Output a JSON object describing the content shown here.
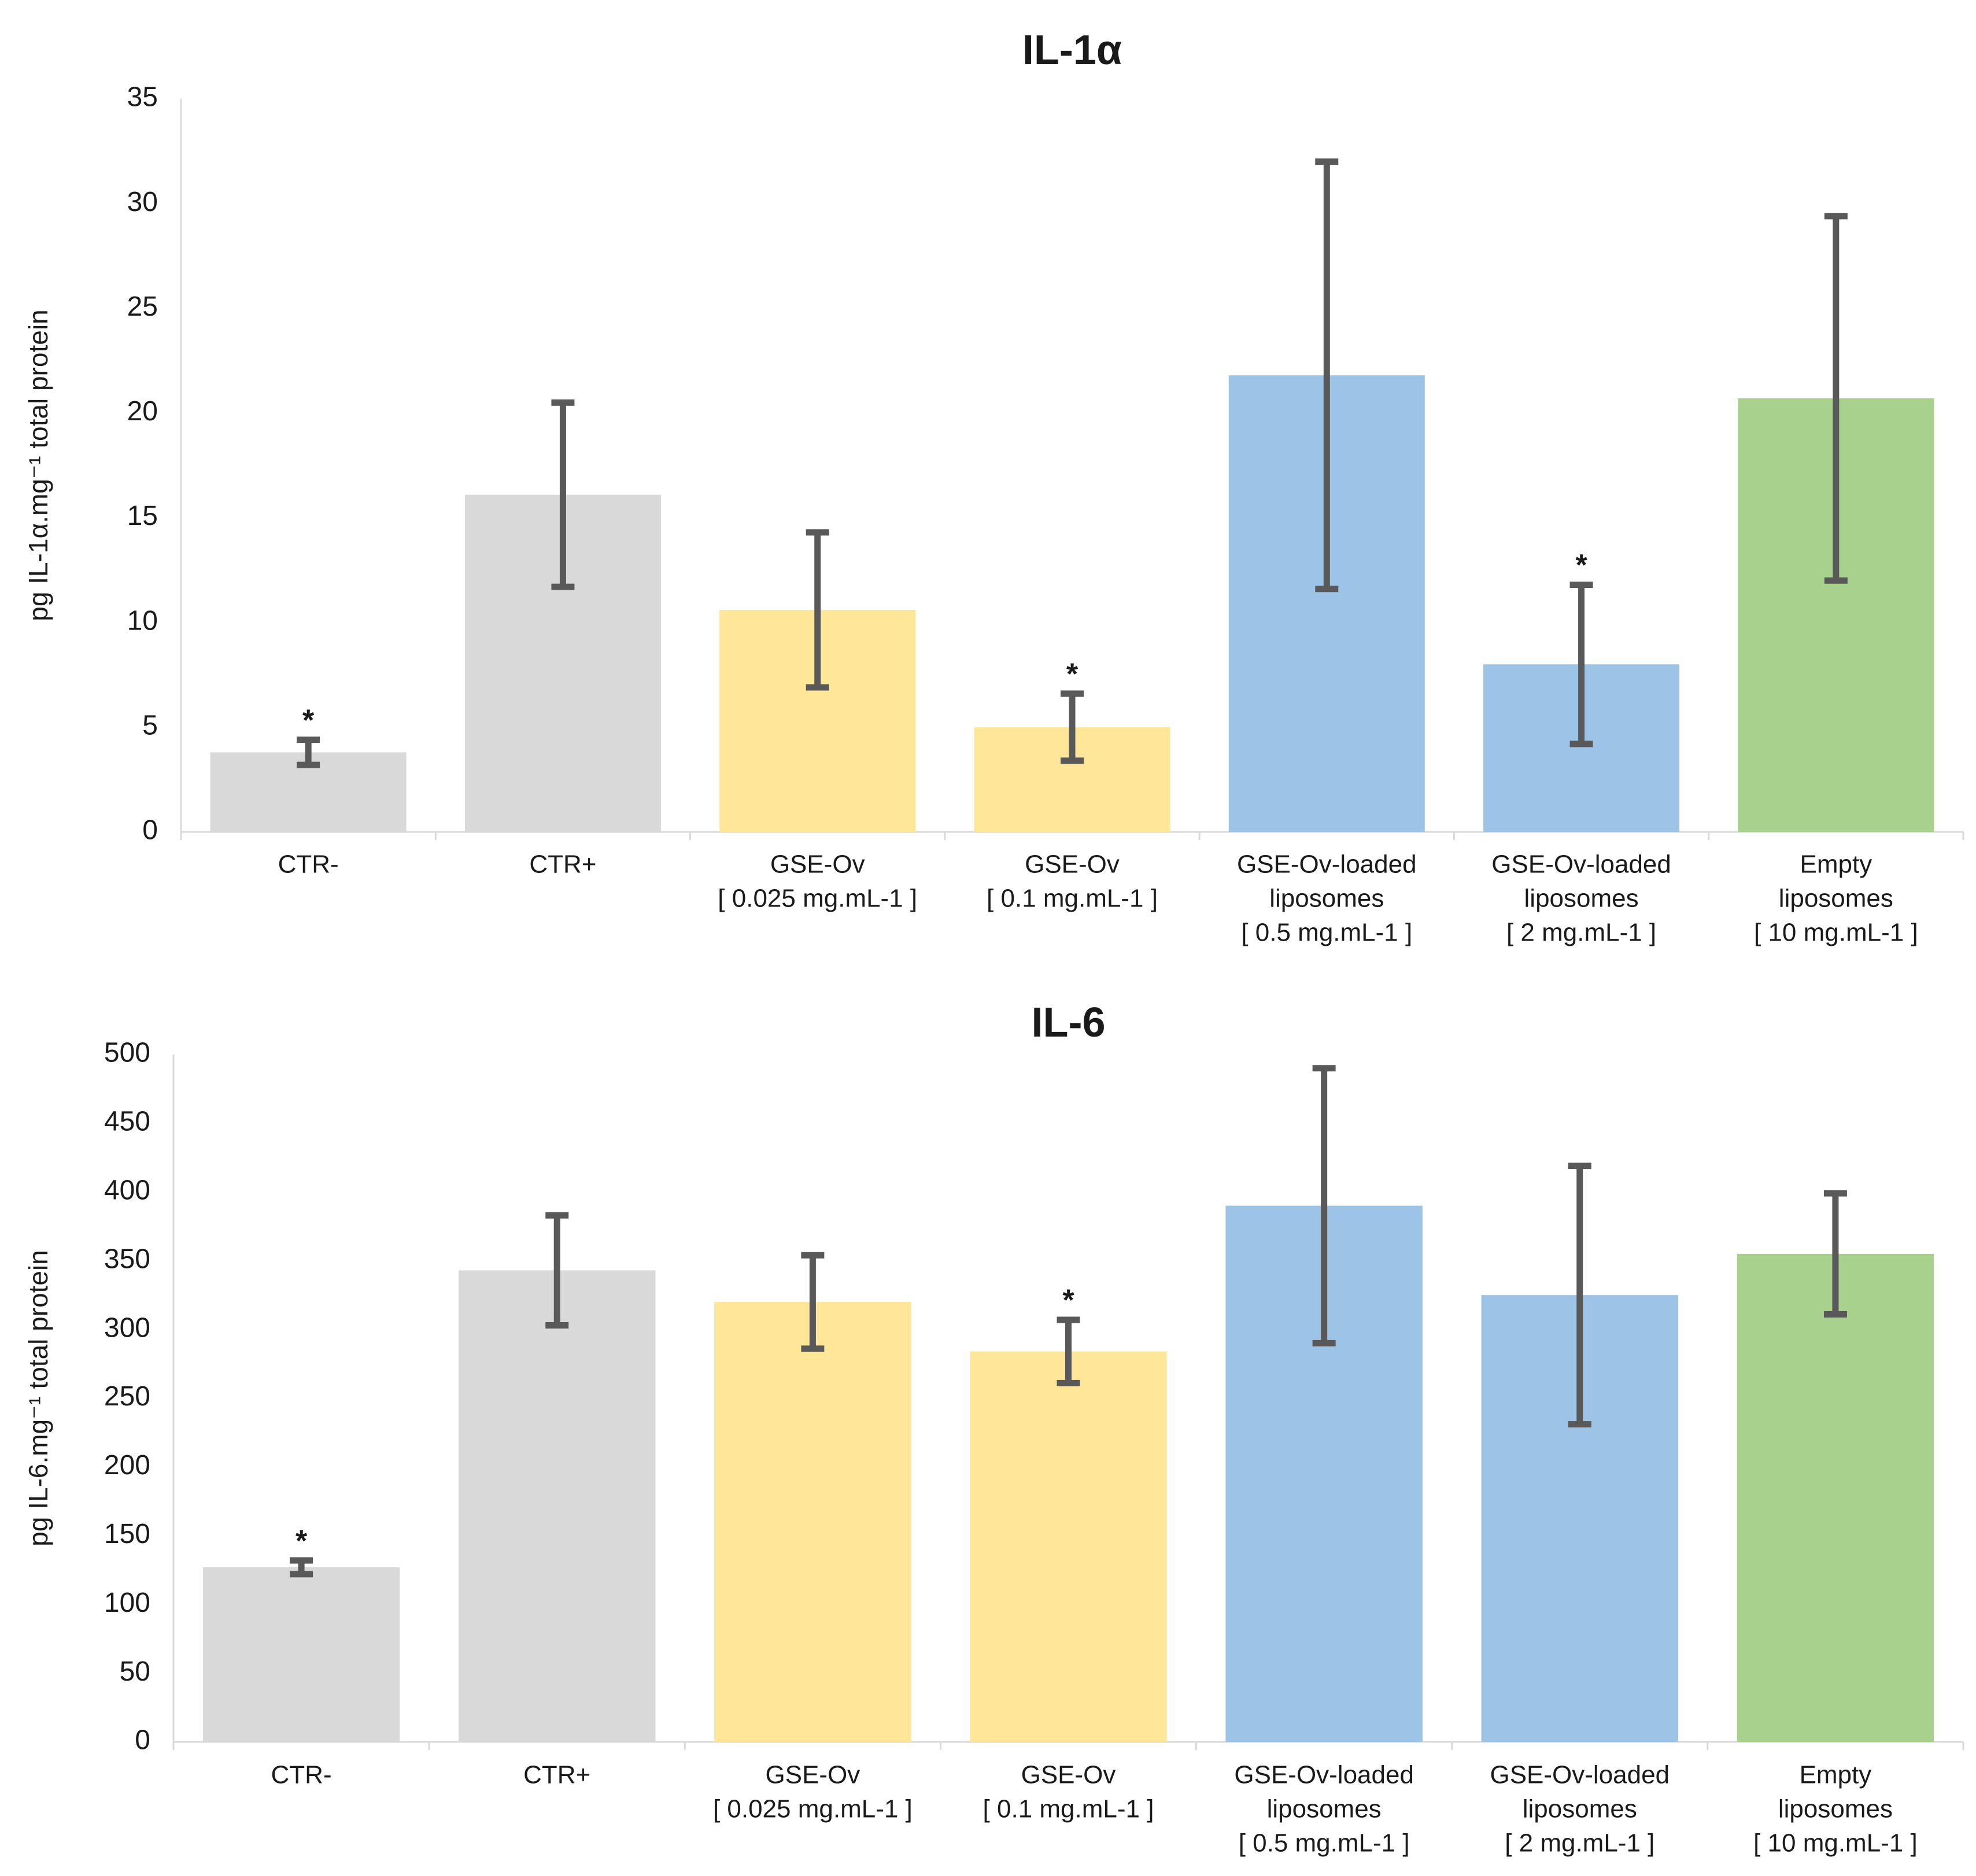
{
  "chart_data": [
    {
      "type": "bar",
      "title": "IL-1α",
      "ylabel": "pg IL-1α.mg⁻¹ total protein",
      "categories": [
        [
          "CTR-"
        ],
        [
          "CTR+"
        ],
        [
          "GSE-Ov",
          "[ 0.025 mg.mL-1 ]"
        ],
        [
          "GSE-Ov",
          "[ 0.1 mg.mL-1 ]"
        ],
        [
          "GSE-Ov-loaded",
          "liposomes",
          "[ 0.5 mg.mL-1 ]"
        ],
        [
          "GSE-Ov-loaded",
          "liposomes",
          "[ 2 mg.mL-1 ]"
        ],
        [
          "Empty",
          "liposomes",
          "[ 10 mg.mL-1 ]"
        ]
      ],
      "values": [
        3.8,
        16.1,
        10.6,
        5.0,
        21.8,
        8.0,
        20.7
      ],
      "errors": [
        0.6,
        4.4,
        3.7,
        1.6,
        10.2,
        3.8,
        8.7
      ],
      "significance": [
        "*",
        null,
        null,
        "*",
        null,
        "*",
        null
      ],
      "colors": [
        "#d9d9d9",
        "#d9d9d9",
        "#ffe699",
        "#ffe699",
        "#9dc3e6",
        "#9dc3e6",
        "#a9d18e"
      ],
      "error_color": "#595959",
      "ylim": [
        0,
        35
      ],
      "yticks": [
        0,
        5,
        10,
        15,
        20,
        25,
        30,
        35
      ],
      "grid": false
    },
    {
      "type": "bar",
      "title": "IL-6",
      "ylabel": "pg IL-6.mg⁻¹ total protein",
      "categories": [
        [
          "CTR-"
        ],
        [
          "CTR+"
        ],
        [
          "GSE-Ov",
          "[ 0.025 mg.mL-1 ]"
        ],
        [
          "GSE-Ov",
          "[ 0.1 mg.mL-1 ]"
        ],
        [
          "GSE-Ov-loaded",
          "liposomes",
          "[ 0.5 mg.mL-1 ]"
        ],
        [
          "GSE-Ov-loaded",
          "liposomes",
          "[ 2 mg.mL-1 ]"
        ],
        [
          "Empty",
          "liposomes",
          "[ 10 mg.mL-1 ]"
        ]
      ],
      "values": [
        127,
        343,
        320,
        284,
        390,
        325,
        355
      ],
      "errors": [
        5,
        40,
        34,
        23,
        100,
        94,
        44
      ],
      "significance": [
        "*",
        null,
        null,
        "*",
        null,
        null,
        null
      ],
      "colors": [
        "#d9d9d9",
        "#d9d9d9",
        "#ffe699",
        "#ffe699",
        "#9dc3e6",
        "#9dc3e6",
        "#a9d18e"
      ],
      "error_color": "#595959",
      "ylim": [
        0,
        500
      ],
      "yticks": [
        0,
        50,
        100,
        150,
        200,
        250,
        300,
        350,
        400,
        450,
        500
      ],
      "grid": false
    }
  ]
}
